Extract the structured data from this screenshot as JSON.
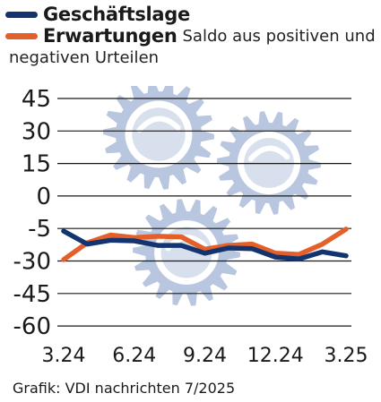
{
  "legend": {
    "series1": "Geschäftslage",
    "series2": "Erwartungen",
    "note_line1": "Saldo aus positiven und",
    "note_line2": "negativen Urteilen"
  },
  "colors": {
    "navy": "#13346e",
    "orange": "#e4602a",
    "gear": "#b8c6df",
    "grid": "#1a1a1a"
  },
  "credit": "Grafik: VDI nachrichten 7/2025",
  "chart_data": {
    "type": "line",
    "x": [
      "3.24",
      "4.24",
      "5.24",
      "6.24",
      "7.24",
      "8.24",
      "9.24",
      "10.24",
      "11.24",
      "12.24",
      "1.25",
      "2.25",
      "3.25"
    ],
    "x_tick_labels": [
      "3.24",
      "6.24",
      "9.24",
      "12.24",
      "3.25"
    ],
    "y_ticks": [
      45,
      30,
      15,
      0,
      -5,
      -30,
      -45,
      -60
    ],
    "y_tick_labels": [
      "45",
      "30",
      "15",
      "0",
      "-5",
      "-30",
      "-45",
      "-60"
    ],
    "grid": true,
    "legend_position": "top-left",
    "series": [
      {
        "name": "Geschäftslage",
        "color": "#13346e",
        "values": [
          -7,
          -17,
          -14,
          -14.5,
          -18,
          -18,
          -24,
          -20,
          -20.5,
          -27,
          -28.5,
          -23,
          -26
        ]
      },
      {
        "name": "Erwartungen",
        "color": "#e4602a",
        "values": [
          -29,
          -16,
          -10,
          -12,
          -11,
          -11.5,
          -21,
          -18,
          -17,
          -24,
          -25,
          -17,
          -5.5
        ]
      }
    ]
  }
}
